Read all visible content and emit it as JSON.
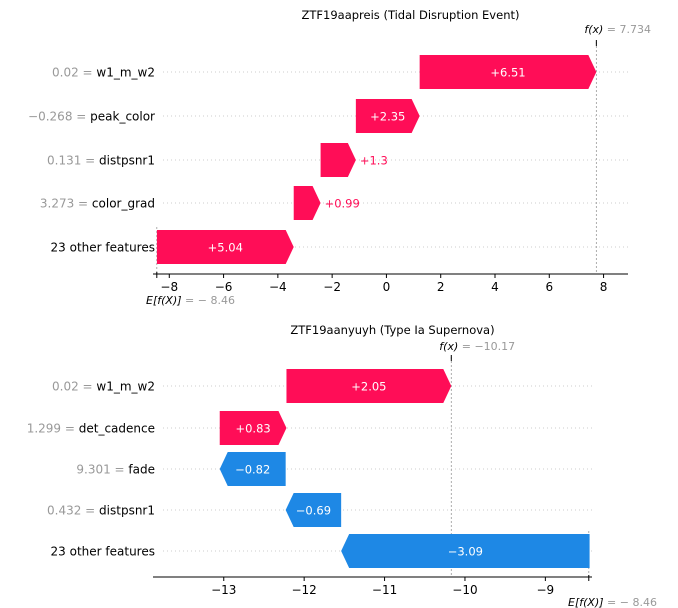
{
  "colors": {
    "positive": "#ff0d57",
    "negative": "#1e88e5",
    "gray_text": "#999999",
    "axis": "#000000"
  },
  "chart_data": [
    {
      "type": "bar",
      "subtype": "shap-waterfall",
      "title": "ZTF19aapreis (Tidal Disruption Event)",
      "fx_label": "f(x)",
      "fx_value_text": "= 7.734",
      "fx": 7.734,
      "efx_label": "E[f(X)]",
      "efx_value_text": "= − 8.46",
      "efx": -8.46,
      "xlim": [
        -8.6,
        8.9
      ],
      "xticks": [
        -8,
        -6,
        -4,
        -2,
        0,
        2,
        4,
        6,
        8
      ],
      "xtick_labels": [
        "−8",
        "−6",
        "−4",
        "−2",
        "0",
        "2",
        "4",
        "6",
        "8"
      ],
      "rows": [
        {
          "value_text": "0.02",
          "feature": "w1_m_w2",
          "label": "0.02 = w1_m_w2",
          "start": 1.224,
          "end": 7.734,
          "contribution": 6.51,
          "text": "+6.51"
        },
        {
          "value_text": "−0.268",
          "feature": "peak_color",
          "label": "−0.268 = peak_color",
          "start": -1.126,
          "end": 1.224,
          "contribution": 2.35,
          "text": "+2.35"
        },
        {
          "value_text": "0.131",
          "feature": "distpsnr1",
          "label": "0.131 = distpsnr1",
          "start": -2.426,
          "end": -1.126,
          "contribution": 1.3,
          "text": "+1.3"
        },
        {
          "value_text": "3.273",
          "feature": "color_grad",
          "label": "3.273 = color_grad",
          "start": -3.416,
          "end": -2.426,
          "contribution": 0.99,
          "text": "+0.99"
        },
        {
          "value_text": "",
          "feature": "23 other features",
          "label": "23 other features",
          "start": -8.456,
          "end": -3.416,
          "contribution": 5.04,
          "text": "+5.04"
        }
      ]
    },
    {
      "type": "bar",
      "subtype": "shap-waterfall",
      "title": "ZTF19aanyuyh (Type Ia Supernova)",
      "fx_label": "f(x)",
      "fx_value_text": "= −10.17",
      "fx": -10.17,
      "efx_label": "E[f(X)]",
      "efx_value_text": "= − 8.46",
      "efx": -8.46,
      "xlim": [
        -13.88,
        -8.42
      ],
      "xticks": [
        -13,
        -12,
        -11,
        -10,
        -9
      ],
      "xtick_labels": [
        "−13",
        "−12",
        "−11",
        "−10",
        "−9"
      ],
      "rows": [
        {
          "value_text": "0.02",
          "feature": "w1_m_w2",
          "label": "0.02 = w1_m_w2",
          "start": -12.22,
          "end": -10.17,
          "contribution": 2.05,
          "text": "+2.05"
        },
        {
          "value_text": "1.299",
          "feature": "det_cadence",
          "label": "1.299 = det_cadence",
          "start": -13.05,
          "end": -12.22,
          "contribution": 0.83,
          "text": "+0.83"
        },
        {
          "value_text": "9.301",
          "feature": "fade",
          "label": "9.301 = fade",
          "start": -12.23,
          "end": -13.05,
          "contribution": -0.82,
          "text": "−0.82"
        },
        {
          "value_text": "0.432",
          "feature": "distpsnr1",
          "label": "0.432 = distpsnr1",
          "start": -11.54,
          "end": -12.23,
          "contribution": -0.69,
          "text": "−0.69"
        },
        {
          "value_text": "",
          "feature": "23 other features",
          "label": "23 other features",
          "start": -8.45,
          "end": -11.54,
          "contribution": -3.09,
          "text": "−3.09"
        }
      ]
    }
  ]
}
